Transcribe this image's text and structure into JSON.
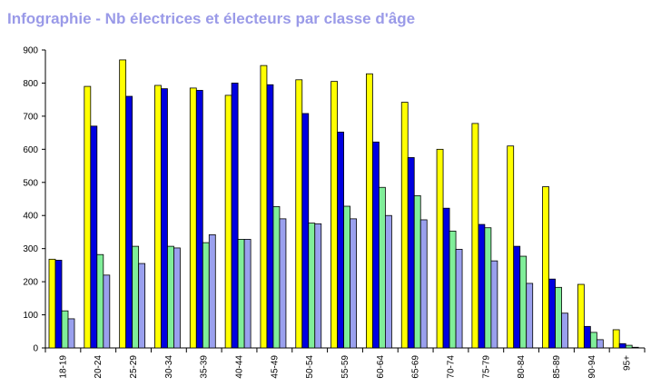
{
  "title": "Infographie - Nb électrices et électeurs par classe d'âge",
  "chart_data": {
    "type": "bar",
    "title": "Infographie - Nb électrices et électeurs par classe d'âge",
    "xlabel": "",
    "ylabel": "",
    "ylim": [
      0,
      900
    ],
    "yticks": [
      "0",
      "100",
      "200",
      "300",
      "400",
      "500",
      "600",
      "700",
      "800",
      "900"
    ],
    "grid": false,
    "legend": "none",
    "categories": [
      "18-19",
      "20-24",
      "25-29",
      "30-34",
      "35-39",
      "40-44",
      "45-49",
      "50-54",
      "55-59",
      "60-64",
      "65-69",
      "70-74",
      "75-79",
      "80-84",
      "85-89",
      "90-94",
      "95+"
    ],
    "series": [
      {
        "color": "#ffff00",
        "values": [
          268,
          790,
          870,
          793,
          785,
          763,
          853,
          810,
          805,
          828,
          742,
          600,
          678,
          610,
          487,
          192,
          55
        ]
      },
      {
        "color": "#0000e0",
        "values": [
          265,
          670,
          760,
          783,
          778,
          800,
          795,
          708,
          652,
          622,
          575,
          422,
          373,
          307,
          208,
          65,
          13
        ]
      },
      {
        "color": "#80ee99",
        "values": [
          112,
          282,
          307,
          307,
          318,
          328,
          427,
          377,
          428,
          485,
          460,
          353,
          363,
          277,
          183,
          47,
          8
        ]
      },
      {
        "color": "#9aa0ee",
        "values": [
          88,
          220,
          255,
          302,
          342,
          328,
          390,
          375,
          390,
          400,
          387,
          298,
          263,
          195,
          105,
          25,
          2
        ]
      }
    ]
  }
}
